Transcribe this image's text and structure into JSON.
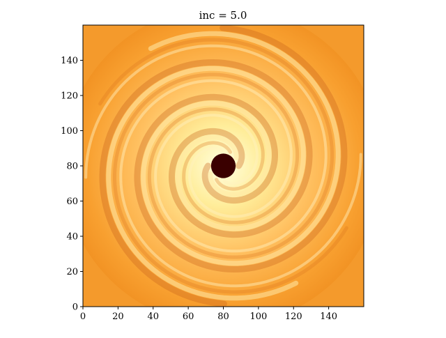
{
  "chart_data": {
    "type": "heatmap",
    "title": "inc = 5.0",
    "xlabel": "",
    "ylabel": "",
    "xlim": [
      0,
      160
    ],
    "ylim": [
      0,
      160
    ],
    "x_ticks": [
      0,
      20,
      40,
      60,
      80,
      100,
      120,
      140
    ],
    "y_ticks": [
      0,
      20,
      40,
      60,
      80,
      100,
      120,
      140
    ],
    "grid": false,
    "colormap": [
      "#ff8a00",
      "#ffb347",
      "#ffe088",
      "#ffffc8"
    ],
    "central_feature": {
      "x": 80,
      "y": 80,
      "radius": 7,
      "color": "#3a0000"
    },
    "spiral_arms": 2
  }
}
